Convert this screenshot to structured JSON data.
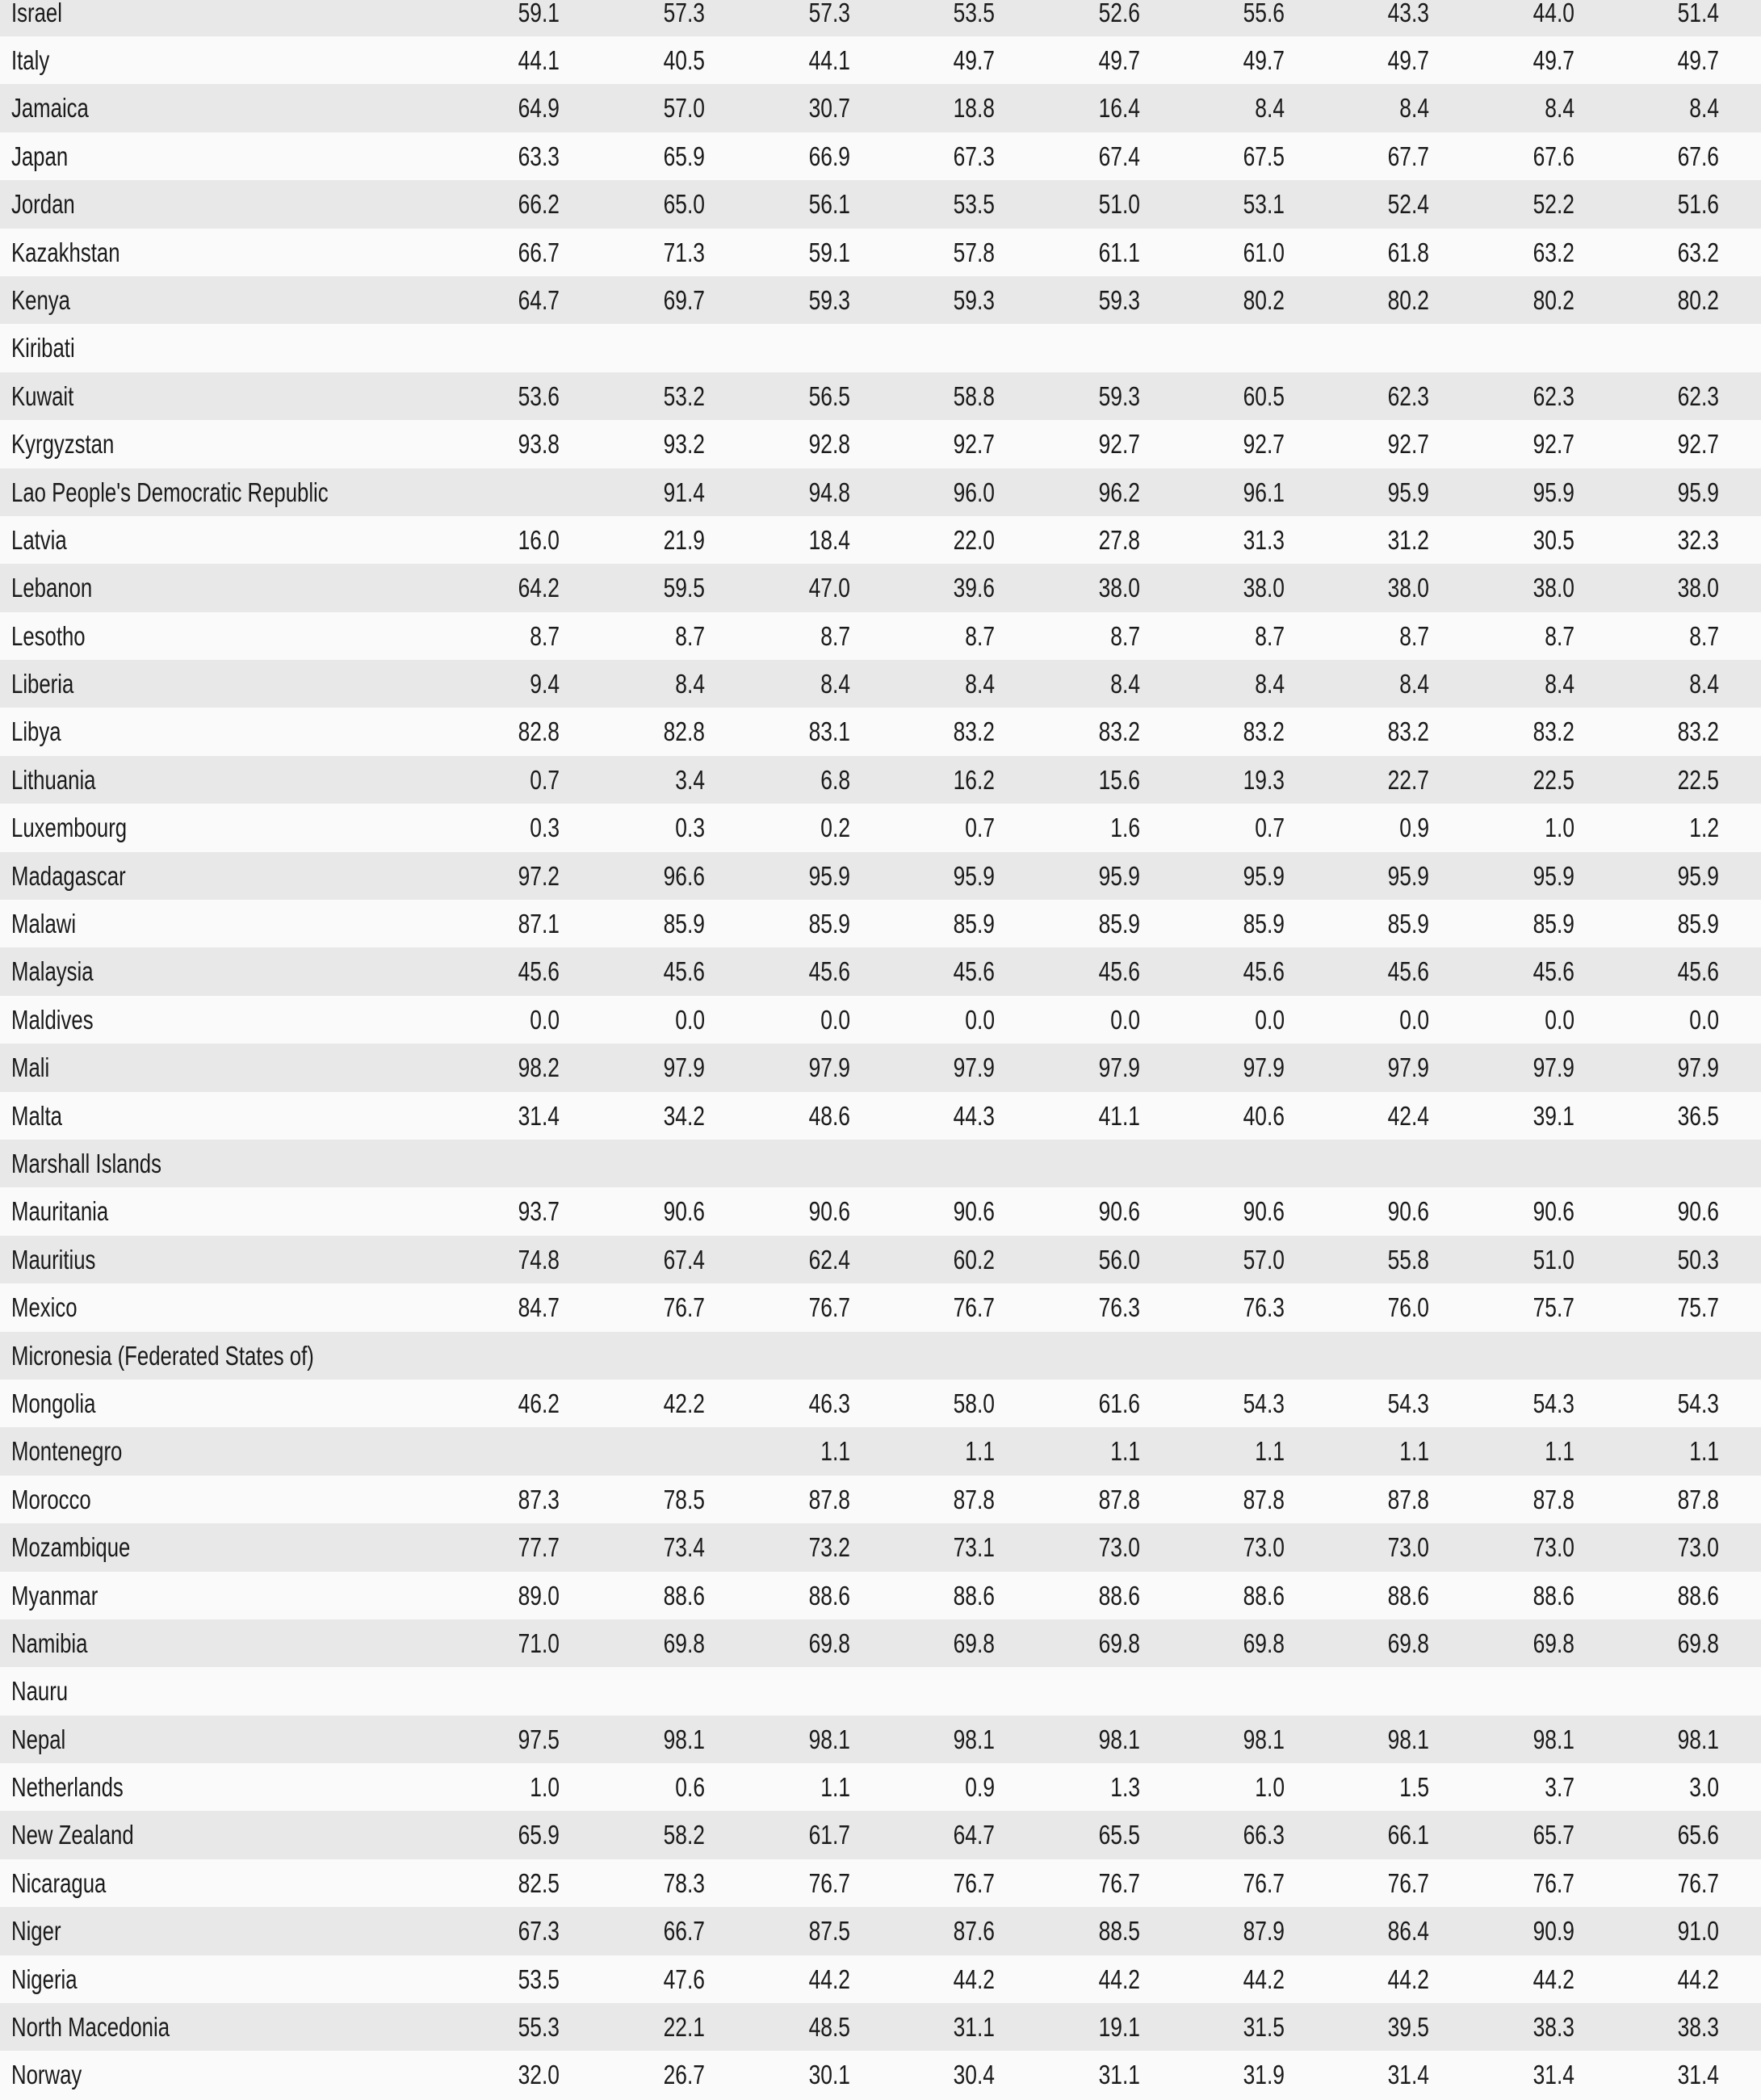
{
  "table": {
    "rows": [
      {
        "country": "Israel",
        "values": [
          "59.1",
          "57.3",
          "57.3",
          "53.5",
          "52.6",
          "55.6",
          "43.3",
          "44.0",
          "51.4"
        ]
      },
      {
        "country": "Italy",
        "values": [
          "44.1",
          "40.5",
          "44.1",
          "49.7",
          "49.7",
          "49.7",
          "49.7",
          "49.7",
          "49.7"
        ]
      },
      {
        "country": "Jamaica",
        "values": [
          "64.9",
          "57.0",
          "30.7",
          "18.8",
          "16.4",
          "8.4",
          "8.4",
          "8.4",
          "8.4"
        ]
      },
      {
        "country": "Japan",
        "values": [
          "63.3",
          "65.9",
          "66.9",
          "67.3",
          "67.4",
          "67.5",
          "67.7",
          "67.6",
          "67.6"
        ]
      },
      {
        "country": "Jordan",
        "values": [
          "66.2",
          "65.0",
          "56.1",
          "53.5",
          "51.0",
          "53.1",
          "52.4",
          "52.2",
          "51.6"
        ]
      },
      {
        "country": "Kazakhstan",
        "values": [
          "66.7",
          "71.3",
          "59.1",
          "57.8",
          "61.1",
          "61.0",
          "61.8",
          "63.2",
          "63.2"
        ]
      },
      {
        "country": "Kenya",
        "values": [
          "64.7",
          "69.7",
          "59.3",
          "59.3",
          "59.3",
          "80.2",
          "80.2",
          "80.2",
          "80.2"
        ]
      },
      {
        "country": "Kiribati",
        "values": [
          "",
          "",
          "",
          "",
          "",
          "",
          "",
          "",
          ""
        ]
      },
      {
        "country": "Kuwait",
        "values": [
          "53.6",
          "53.2",
          "56.5",
          "58.8",
          "59.3",
          "60.5",
          "62.3",
          "62.3",
          "62.3"
        ]
      },
      {
        "country": "Kyrgyzstan",
        "values": [
          "93.8",
          "93.2",
          "92.8",
          "92.7",
          "92.7",
          "92.7",
          "92.7",
          "92.7",
          "92.7"
        ]
      },
      {
        "country": "Lao People's Democratic Republic",
        "values": [
          "",
          "91.4",
          "94.8",
          "96.0",
          "96.2",
          "96.1",
          "95.9",
          "95.9",
          "95.9"
        ]
      },
      {
        "country": "Latvia",
        "values": [
          "16.0",
          "21.9",
          "18.4",
          "22.0",
          "27.8",
          "31.3",
          "31.2",
          "30.5",
          "32.3"
        ]
      },
      {
        "country": "Lebanon",
        "values": [
          "64.2",
          "59.5",
          "47.0",
          "39.6",
          "38.0",
          "38.0",
          "38.0",
          "38.0",
          "38.0"
        ]
      },
      {
        "country": "Lesotho",
        "values": [
          "8.7",
          "8.7",
          "8.7",
          "8.7",
          "8.7",
          "8.7",
          "8.7",
          "8.7",
          "8.7"
        ]
      },
      {
        "country": "Liberia",
        "values": [
          "9.4",
          "8.4",
          "8.4",
          "8.4",
          "8.4",
          "8.4",
          "8.4",
          "8.4",
          "8.4"
        ]
      },
      {
        "country": "Libya",
        "values": [
          "82.8",
          "82.8",
          "83.1",
          "83.2",
          "83.2",
          "83.2",
          "83.2",
          "83.2",
          "83.2"
        ]
      },
      {
        "country": "Lithuania",
        "values": [
          "0.7",
          "3.4",
          "6.8",
          "16.2",
          "15.6",
          "19.3",
          "22.7",
          "22.5",
          "22.5"
        ]
      },
      {
        "country": "Luxembourg",
        "values": [
          "0.3",
          "0.3",
          "0.2",
          "0.7",
          "1.6",
          "0.7",
          "0.9",
          "1.0",
          "1.2"
        ]
      },
      {
        "country": "Madagascar",
        "values": [
          "97.2",
          "96.6",
          "95.9",
          "95.9",
          "95.9",
          "95.9",
          "95.9",
          "95.9",
          "95.9"
        ]
      },
      {
        "country": "Malawi",
        "values": [
          "87.1",
          "85.9",
          "85.9",
          "85.9",
          "85.9",
          "85.9",
          "85.9",
          "85.9",
          "85.9"
        ]
      },
      {
        "country": "Malaysia",
        "values": [
          "45.6",
          "45.6",
          "45.6",
          "45.6",
          "45.6",
          "45.6",
          "45.6",
          "45.6",
          "45.6"
        ]
      },
      {
        "country": "Maldives",
        "values": [
          "0.0",
          "0.0",
          "0.0",
          "0.0",
          "0.0",
          "0.0",
          "0.0",
          "0.0",
          "0.0"
        ]
      },
      {
        "country": "Mali",
        "values": [
          "98.2",
          "97.9",
          "97.9",
          "97.9",
          "97.9",
          "97.9",
          "97.9",
          "97.9",
          "97.9"
        ]
      },
      {
        "country": "Malta",
        "values": [
          "31.4",
          "34.2",
          "48.6",
          "44.3",
          "41.1",
          "40.6",
          "42.4",
          "39.1",
          "36.5"
        ]
      },
      {
        "country": "Marshall Islands",
        "values": [
          "",
          "",
          "",
          "",
          "",
          "",
          "",
          "",
          ""
        ]
      },
      {
        "country": "Mauritania",
        "values": [
          "93.7",
          "90.6",
          "90.6",
          "90.6",
          "90.6",
          "90.6",
          "90.6",
          "90.6",
          "90.6"
        ]
      },
      {
        "country": "Mauritius",
        "values": [
          "74.8",
          "67.4",
          "62.4",
          "60.2",
          "56.0",
          "57.0",
          "55.8",
          "51.0",
          "50.3"
        ]
      },
      {
        "country": "Mexico",
        "values": [
          "84.7",
          "76.7",
          "76.7",
          "76.7",
          "76.3",
          "76.3",
          "76.0",
          "75.7",
          "75.7"
        ]
      },
      {
        "country": "Micronesia (Federated States of)",
        "values": [
          "",
          "",
          "",
          "",
          "",
          "",
          "",
          "",
          ""
        ]
      },
      {
        "country": "Mongolia",
        "values": [
          "46.2",
          "42.2",
          "46.3",
          "58.0",
          "61.6",
          "54.3",
          "54.3",
          "54.3",
          "54.3"
        ]
      },
      {
        "country": "Montenegro",
        "values": [
          "",
          "",
          "1.1",
          "1.1",
          "1.1",
          "1.1",
          "1.1",
          "1.1",
          "1.1"
        ]
      },
      {
        "country": "Morocco",
        "values": [
          "87.3",
          "78.5",
          "87.8",
          "87.8",
          "87.8",
          "87.8",
          "87.8",
          "87.8",
          "87.8"
        ]
      },
      {
        "country": "Mozambique",
        "values": [
          "77.7",
          "73.4",
          "73.2",
          "73.1",
          "73.0",
          "73.0",
          "73.0",
          "73.0",
          "73.0"
        ]
      },
      {
        "country": "Myanmar",
        "values": [
          "89.0",
          "88.6",
          "88.6",
          "88.6",
          "88.6",
          "88.6",
          "88.6",
          "88.6",
          "88.6"
        ]
      },
      {
        "country": "Namibia",
        "values": [
          "71.0",
          "69.8",
          "69.8",
          "69.8",
          "69.8",
          "69.8",
          "69.8",
          "69.8",
          "69.8"
        ]
      },
      {
        "country": "Nauru",
        "values": [
          "",
          "",
          "",
          "",
          "",
          "",
          "",
          "",
          ""
        ]
      },
      {
        "country": "Nepal",
        "values": [
          "97.5",
          "98.1",
          "98.1",
          "98.1",
          "98.1",
          "98.1",
          "98.1",
          "98.1",
          "98.1"
        ]
      },
      {
        "country": "Netherlands",
        "values": [
          "1.0",
          "0.6",
          "1.1",
          "0.9",
          "1.3",
          "1.0",
          "1.5",
          "3.7",
          "3.0"
        ]
      },
      {
        "country": "New Zealand",
        "values": [
          "65.9",
          "58.2",
          "61.7",
          "64.7",
          "65.5",
          "66.3",
          "66.1",
          "65.7",
          "65.6"
        ]
      },
      {
        "country": "Nicaragua",
        "values": [
          "82.5",
          "78.3",
          "76.7",
          "76.7",
          "76.7",
          "76.7",
          "76.7",
          "76.7",
          "76.7"
        ]
      },
      {
        "country": "Niger",
        "values": [
          "67.3",
          "66.7",
          "87.5",
          "87.6",
          "88.5",
          "87.9",
          "86.4",
          "90.9",
          "91.0"
        ]
      },
      {
        "country": "Nigeria",
        "values": [
          "53.5",
          "47.6",
          "44.2",
          "44.2",
          "44.2",
          "44.2",
          "44.2",
          "44.2",
          "44.2"
        ]
      },
      {
        "country": "North Macedonia",
        "values": [
          "55.3",
          "22.1",
          "48.5",
          "31.1",
          "19.1",
          "31.5",
          "39.5",
          "38.3",
          "38.3"
        ]
      },
      {
        "country": "Norway",
        "values": [
          "32.0",
          "26.7",
          "30.1",
          "30.4",
          "31.1",
          "31.9",
          "31.4",
          "31.4",
          "31.4"
        ]
      }
    ]
  },
  "colors": {
    "stripe": "#e8e8e8",
    "background": "#fafafa",
    "text": "#1a1a1a"
  }
}
